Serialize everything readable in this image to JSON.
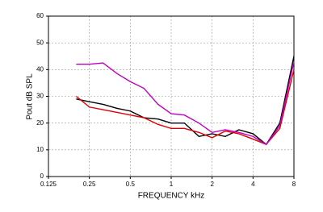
{
  "chart_data": {
    "type": "line",
    "x_label": "FREQUENCY kHz",
    "y_label": "Pout dB SPL",
    "x": [
      0.2,
      0.25,
      0.315,
      0.4,
      0.5,
      0.63,
      0.8,
      1,
      1.25,
      1.6,
      2,
      2.5,
      3.15,
      4,
      5,
      6.3,
      8
    ],
    "series": [
      {
        "color": "#000000",
        "values": [
          29,
          28,
          27,
          25.5,
          24.5,
          22,
          21.5,
          20,
          20,
          15,
          16,
          15,
          17.5,
          16,
          12,
          20,
          45
        ]
      },
      {
        "color": "#e00000",
        "values": [
          30,
          26,
          25,
          24,
          23,
          22,
          19.5,
          18,
          18,
          16.5,
          14.5,
          17,
          16,
          14,
          12,
          18,
          40
        ]
      },
      {
        "color": "#c000c0",
        "values": [
          42,
          42,
          42.5,
          38.5,
          35.5,
          33,
          27,
          23.5,
          23,
          20,
          16.5,
          17.5,
          16.5,
          15,
          12,
          19,
          43
        ]
      }
    ],
    "xscale": "log",
    "xlim": [
      0.125,
      8
    ],
    "xticks": [
      0.125,
      0.25,
      0.5,
      1,
      2,
      4,
      8
    ],
    "ylim": [
      0,
      60
    ],
    "yticks": [
      0,
      10,
      20,
      30,
      40,
      50,
      60
    ],
    "grid": true
  }
}
